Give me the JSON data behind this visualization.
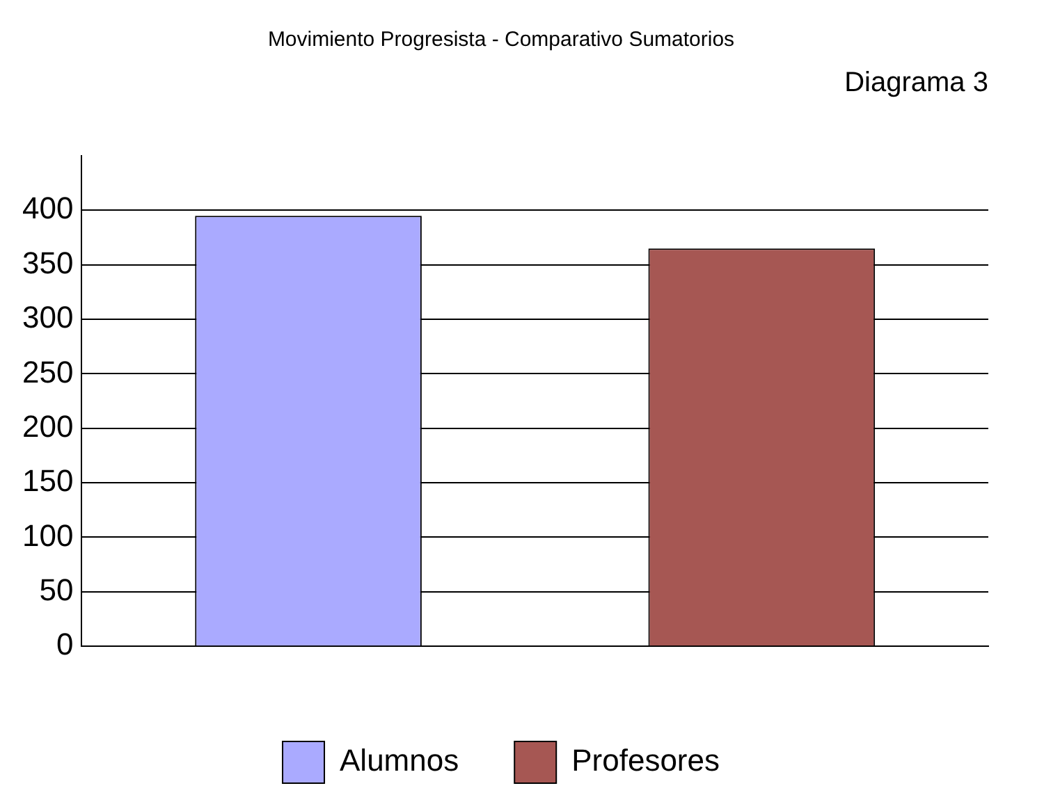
{
  "chart_data": {
    "type": "bar",
    "title": "Movimiento Progresista - Comparativo Sumatorios",
    "subtitle": "Diagrama 3",
    "categories": [
      null
    ],
    "series": [
      {
        "name": "Alumnos",
        "color": "#aaaaff",
        "values": [
          395
        ]
      },
      {
        "name": "Profesores",
        "color": "#a65753",
        "values": [
          365
        ]
      }
    ],
    "ylim": [
      0,
      450
    ],
    "yticks": [
      0,
      50,
      100,
      150,
      200,
      250,
      300,
      350,
      400
    ],
    "grid": "y",
    "legend": "bottom"
  }
}
